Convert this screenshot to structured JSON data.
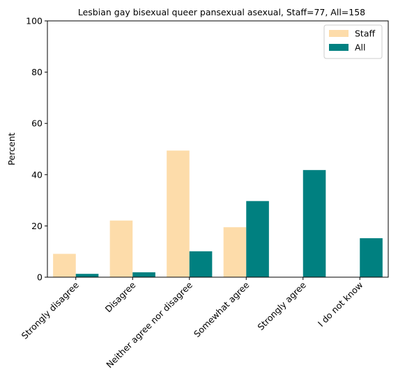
{
  "chart_data": {
    "type": "bar",
    "title": "Lesbian gay bisexual queer pansexual asexual, Staff=77, All=158",
    "xlabel": "",
    "ylabel": "Percent",
    "ylim": [
      0,
      100
    ],
    "yticks": [
      0,
      20,
      40,
      60,
      80,
      100
    ],
    "categories": [
      "Strongly disagree",
      "Disagree",
      "Neither agree nor disagree",
      "Somewhat agree",
      "Strongly agree",
      "I do not know"
    ],
    "series": [
      {
        "name": "Staff",
        "color": "#fddcaa",
        "values": [
          9.1,
          22.1,
          49.4,
          19.5,
          0,
          0
        ]
      },
      {
        "name": "All",
        "color": "#008080",
        "values": [
          1.3,
          1.9,
          10.1,
          29.7,
          41.8,
          15.2
        ]
      }
    ],
    "legend": "top-right",
    "grid": false
  }
}
